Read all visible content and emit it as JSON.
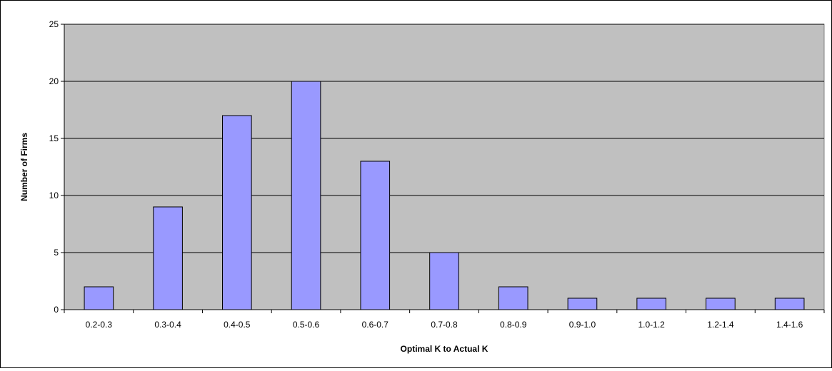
{
  "chart_data": {
    "type": "bar",
    "title": "",
    "xlabel": "Optimal K to Actual K",
    "ylabel": "Number of Firms",
    "categories": [
      "0.2-0.3",
      "0.3-0.4",
      "0.4-0.5",
      "0.5-0.6",
      "0.6-0.7",
      "0.7-0.8",
      "0.8-0.9",
      "0.9-1.0",
      "1.0-1.2",
      "1.2-1.4",
      "1.4-1.6"
    ],
    "values": [
      2,
      9,
      17,
      20,
      13,
      5,
      2,
      1,
      1,
      1,
      1
    ],
    "ylim": [
      0,
      25
    ],
    "yticks": [
      0,
      5,
      10,
      15,
      20,
      25
    ],
    "grid": true,
    "legend": "none",
    "colors": {
      "plot_background": "#C0C0C0",
      "bar_fill": "#9999FF",
      "bar_stroke": "#000000",
      "gridline": "#000000"
    }
  }
}
